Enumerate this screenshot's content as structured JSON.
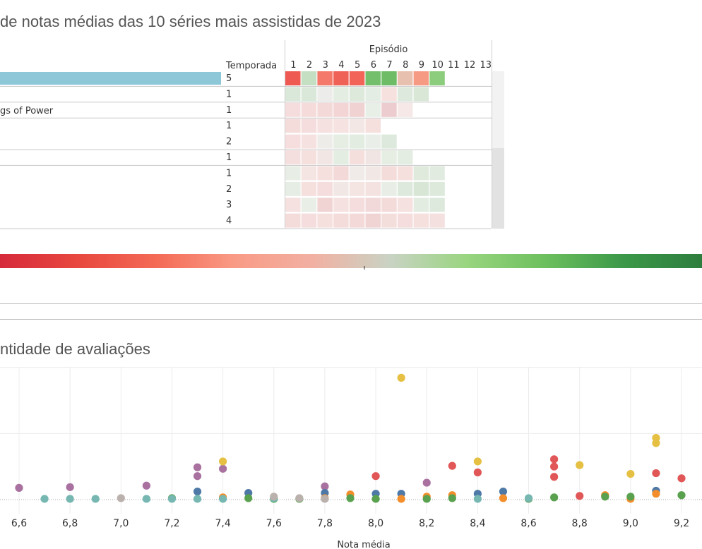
{
  "heatmap": {
    "title": "de notas médias das 10 séries mais assistidas de 2023",
    "season_header": "Temporada",
    "episode_header": "Episódio",
    "episodes": [
      "1",
      "2",
      "3",
      "4",
      "5",
      "6",
      "7",
      "8",
      "9",
      "10",
      "11",
      "12",
      "13"
    ],
    "visible_series_label": "gs of Power",
    "rows": [
      {
        "season": "5",
        "highlight": true,
        "cells": [
          "#ee5a52",
          "#c5dfc3",
          "#f4796a",
          "#ef6057",
          "#f26458",
          "#74bf6b",
          "#6fbc66",
          "#e8c0b0",
          "#f79a84",
          "#8ccd7d"
        ]
      },
      {
        "season": "1",
        "cells": [
          "#d9e8d8",
          "#dae8d9",
          "#ececea",
          "#e4ede2",
          "#dde9db",
          "#e4ede3",
          "#f6e1df",
          "#dde9dc",
          "#d9e7d7"
        ]
      },
      {
        "season": "1",
        "cells": [
          "#f4dddc",
          "#f5dcdb",
          "#f3d9d8",
          "#f3d5d6",
          "#f0d2d2",
          "#e8efe6",
          "#ecccce",
          "#f5e8e6"
        ]
      },
      {
        "season": "1",
        "cells": [
          "#f4dcdb",
          "#f4dddc",
          "#f5e1df",
          "#f6e3e1",
          "#f2e7e4",
          "#f5e0de"
        ]
      },
      {
        "season": "2",
        "cells": [
          "#f5dedd",
          "#f5e1df",
          "#eeece9",
          "#e6eee4",
          "#e2ece1",
          "#eaeee8",
          "#dde9dc"
        ]
      },
      {
        "season": "1",
        "cells": [
          "#f5dfde",
          "#f5e0de",
          "#f1e6e4",
          "#e3ede2",
          "#f4dfdd",
          "#f1e5e3",
          "#e6eee4",
          "#e3ede2"
        ]
      },
      {
        "season": "1",
        "cells": [
          "#e8eee6",
          "#f4e5e3",
          "#f5e0de",
          "#f3d9d8",
          "#f0ebe8",
          "#f1e8e6",
          "#f4dcdb",
          "#f5e0de",
          "#dfeadd",
          "#e1ebe0"
        ]
      },
      {
        "season": "2",
        "cells": [
          "#e6ede4",
          "#f5e0de",
          "#f4dddc",
          "#f1e8e6",
          "#f4e4e2",
          "#f4e2e0",
          "#e8eee6",
          "#dde9dc",
          "#d8e6d6",
          "#dce9db"
        ]
      },
      {
        "season": "3",
        "cells": [
          "#f5e1df",
          "#e9eee7",
          "#f0d3d3",
          "#f5e1df",
          "#f4dddc",
          "#f2d9d9",
          "#f3dbda",
          "#f5e1df",
          "#e3ece1",
          "#dde9dc"
        ]
      },
      {
        "season": "4",
        "cells": [
          "#f4dcdb",
          "#f4dddc",
          "#f5e0de",
          "#f4dcdb",
          "#f3dad9",
          "#f0d3d3",
          "#f4dedc",
          "#f4dddc",
          "#f5e0de",
          "#f4e1df"
        ]
      }
    ]
  },
  "legend": {
    "gradient_colors": [
      "#d62a3b",
      "#e8483f",
      "#f46a55",
      "#f99a85",
      "#f2b0a2",
      "#c9d3c4",
      "#98d57e",
      "#6cbf5d",
      "#3b9848",
      "#2e7d3e"
    ]
  },
  "scatter": {
    "title": "ntidade de avaliações",
    "xlabel": "Nota média",
    "x_ticks": [
      "6,6",
      "6,8",
      "7,0",
      "7,2",
      "7,4",
      "7,6",
      "7,8",
      "8,0",
      "8,2",
      "8,4",
      "8,6",
      "8,8",
      "9,0",
      "9,2"
    ]
  },
  "chart_data": {
    "type": "scatter",
    "title": "ntidade de avaliações",
    "xlabel": "Nota média",
    "ylabel": "",
    "xlim": [
      6.55,
      9.3
    ],
    "ylim": [
      0,
      100
    ],
    "y_gridlines": [
      0,
      45,
      90
    ],
    "series": [
      {
        "color": "#a8719f",
        "points": [
          [
            6.6,
            8
          ],
          [
            6.8,
            8.5
          ],
          [
            7.1,
            9.5
          ],
          [
            7.3,
            16
          ],
          [
            7.3,
            22
          ],
          [
            7.4,
            21
          ],
          [
            7.8,
            9
          ],
          [
            8.2,
            11.5
          ]
        ]
      },
      {
        "color": "#e5c043",
        "points": [
          [
            7.4,
            26
          ],
          [
            8.1,
            83
          ],
          [
            8.4,
            26
          ],
          [
            8.8,
            23.5
          ],
          [
            9.0,
            17.5
          ],
          [
            9.1,
            42
          ],
          [
            9.1,
            38.5
          ]
        ]
      },
      {
        "color": "#e15656",
        "points": [
          [
            8.0,
            16
          ],
          [
            8.3,
            23
          ],
          [
            8.4,
            18.5
          ],
          [
            8.7,
            27.5
          ],
          [
            8.7,
            22.5
          ],
          [
            8.7,
            15.5
          ],
          [
            8.8,
            2.5
          ],
          [
            9.1,
            18
          ],
          [
            9.2,
            14.5
          ]
        ]
      },
      {
        "color": "#4e79a7",
        "points": [
          [
            7.3,
            5.5
          ],
          [
            7.5,
            4.5
          ],
          [
            7.8,
            4.5
          ],
          [
            8.0,
            4
          ],
          [
            8.1,
            4
          ],
          [
            8.4,
            4
          ],
          [
            8.5,
            5.5
          ],
          [
            9.1,
            6
          ]
        ]
      },
      {
        "color": "#f28e2b",
        "points": [
          [
            7.4,
            1.5
          ],
          [
            7.8,
            1
          ],
          [
            7.9,
            3.5
          ],
          [
            8.1,
            0.5
          ],
          [
            8.2,
            2
          ],
          [
            8.3,
            3
          ],
          [
            8.5,
            1
          ],
          [
            8.9,
            3
          ],
          [
            9.0,
            0.5
          ],
          [
            9.1,
            4
          ]
        ]
      },
      {
        "color": "#59a14f",
        "points": [
          [
            7.2,
            1
          ],
          [
            7.5,
            1
          ],
          [
            7.6,
            0.5
          ],
          [
            7.7,
            0.5
          ],
          [
            7.9,
            1
          ],
          [
            8.0,
            0.5
          ],
          [
            8.2,
            0.5
          ],
          [
            8.3,
            1
          ],
          [
            8.6,
            0.5
          ],
          [
            8.7,
            1.5
          ],
          [
            8.9,
            2
          ],
          [
            9.0,
            2
          ],
          [
            9.2,
            3
          ]
        ]
      },
      {
        "color": "#76b7b2",
        "points": [
          [
            6.7,
            0.5
          ],
          [
            6.8,
            0.5
          ],
          [
            6.9,
            0.5
          ],
          [
            7.1,
            0.5
          ],
          [
            7.2,
            0.5
          ],
          [
            7.3,
            0.5
          ],
          [
            7.4,
            0.5
          ],
          [
            7.6,
            1
          ],
          [
            8.4,
            0.5
          ],
          [
            8.6,
            1
          ]
        ]
      },
      {
        "color": "#bab0ac",
        "points": [
          [
            7.0,
            1
          ],
          [
            7.6,
            2
          ],
          [
            7.7,
            1
          ],
          [
            7.8,
            0.5
          ]
        ]
      }
    ]
  }
}
